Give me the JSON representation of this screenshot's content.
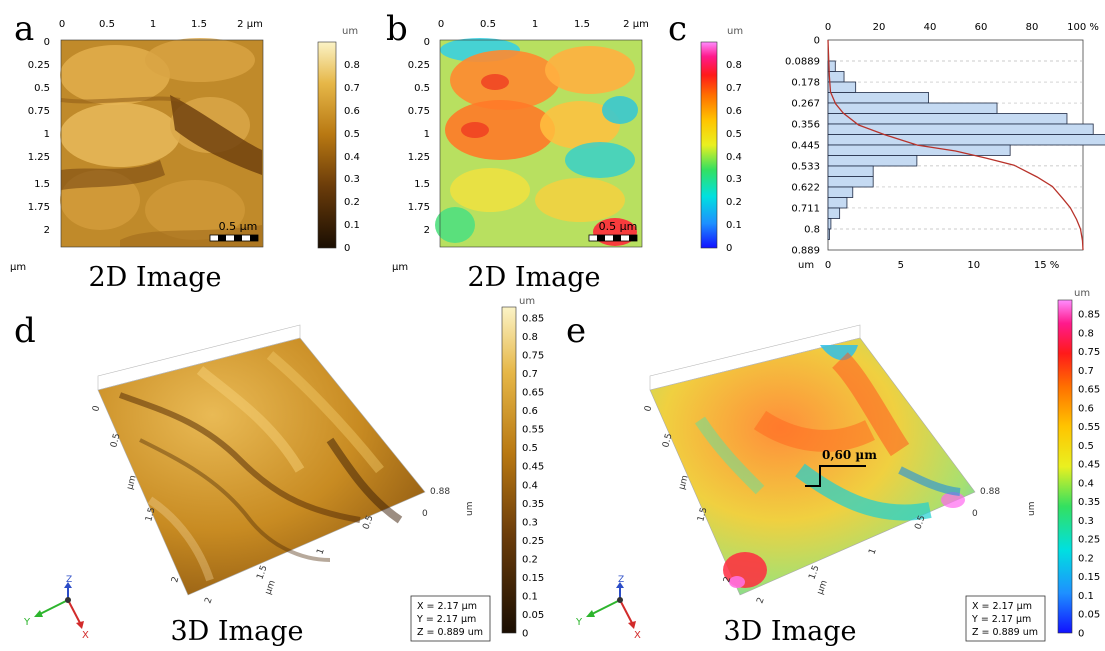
{
  "panels": {
    "a": {
      "letter": "a",
      "caption": "2D Image",
      "x_ticks": [
        "0",
        "0.5",
        "1",
        "1.5",
        "2 µm"
      ],
      "y_ticks": [
        "0",
        "0.25",
        "0.5",
        "0.75",
        "1",
        "1.25",
        "1.5",
        "1.75",
        "2"
      ],
      "corner_unit": "µm",
      "scalebar": "0.5 µm",
      "colorbar_unit": "um",
      "colorbar_ticks": [
        "0.8",
        "0.7",
        "0.6",
        "0.5",
        "0.4",
        "0.3",
        "0.2",
        "0.1",
        "0"
      ]
    },
    "b": {
      "letter": "b",
      "caption": "2D Image",
      "x_ticks": [
        "0",
        "0.5",
        "1",
        "1.5",
        "2 µm"
      ],
      "y_ticks": [
        "0",
        "0.25",
        "0.5",
        "0.75",
        "1",
        "1.25",
        "1.5",
        "1.75",
        "2"
      ],
      "corner_unit": "µm",
      "scalebar": "0.5 µm"
    },
    "c": {
      "letter": "c",
      "colorbar_unit": "um",
      "colorbar_ticks": [
        "0.8",
        "0.7",
        "0.6",
        "0.5",
        "0.4",
        "0.3",
        "0.2",
        "0.1",
        "0"
      ],
      "top_ticks": [
        "0",
        "20",
        "40",
        "60",
        "80",
        "100 %"
      ],
      "y_ticks": [
        "0",
        "0.0889",
        "0.178",
        "0.267",
        "0.356",
        "0.445",
        "0.533",
        "0.622",
        "0.711",
        "0.8",
        "0.889"
      ],
      "bottom_ticks": [
        "0",
        "5",
        "10",
        "15 %"
      ],
      "corner_unit": "um"
    },
    "d": {
      "letter": "d",
      "caption": "3D Image",
      "top_value": "0.88",
      "zero": "0",
      "z_unit": "um",
      "y_ticks": [
        "0",
        "0.5",
        "µm",
        "1.5",
        "2"
      ],
      "x_ticks": [
        "0.5",
        "1",
        "1.5",
        "2",
        "µm"
      ],
      "readout": [
        "X = 2.17 µm",
        "Y = 2.17 µm",
        "Z = 0.889 um"
      ],
      "axis_labels": [
        "X",
        "Y",
        "Z"
      ],
      "colorbar_unit": "um",
      "colorbar_ticks": [
        "0.85",
        "0.8",
        "0.75",
        "0.7",
        "0.65",
        "0.6",
        "0.55",
        "0.5",
        "0.45",
        "0.4",
        "0.35",
        "0.3",
        "0.25",
        "0.2",
        "0.15",
        "0.1",
        "0.05",
        "0"
      ]
    },
    "e": {
      "letter": "e",
      "caption": "3D Image",
      "annotation": "0,60 µm",
      "top_value": "0.88",
      "zero": "0",
      "z_unit": "um",
      "y_ticks": [
        "0",
        "0.5",
        "µm",
        "1.5",
        "2"
      ],
      "x_ticks": [
        "0.5",
        "1",
        "1.5",
        "2",
        "µm"
      ],
      "readout": [
        "X = 2.17 µm",
        "Y = 2.17 µm",
        "Z = 0.889 um"
      ],
      "axis_labels": [
        "X",
        "Y",
        "Z"
      ],
      "colorbar_unit": "um",
      "colorbar_ticks": [
        "0.85",
        "0.8",
        "0.75",
        "0.7",
        "0.65",
        "0.6",
        "0.55",
        "0.5",
        "0.45",
        "0.4",
        "0.35",
        "0.3",
        "0.25",
        "0.2",
        "0.15",
        "0.1",
        "0.05",
        "0"
      ]
    }
  },
  "chart_data": {
    "type": "bar",
    "orientation": "horizontal",
    "categories": [
      "0.0444",
      "0.0889",
      "0.133",
      "0.178",
      "0.222",
      "0.267",
      "0.311",
      "0.356",
      "0.4",
      "0.445",
      "0.489",
      "0.533",
      "0.578",
      "0.622",
      "0.667",
      "0.711",
      "0.756",
      "0.8",
      "0.844",
      "0.889"
    ],
    "values": [
      0,
      0,
      0.5,
      1.1,
      1.9,
      6.9,
      11.6,
      16.4,
      18.2,
      20.1,
      12.5,
      6.1,
      3.1,
      3.1,
      1.7,
      1.3,
      0.8,
      0.2,
      0.1,
      0
    ],
    "cumulative": {
      "y": [
        0.0,
        0.15,
        0.22,
        0.27,
        0.31,
        0.36,
        0.4,
        0.445,
        0.47,
        0.5,
        0.53,
        0.58,
        0.62,
        0.67,
        0.71,
        0.76,
        0.8,
        0.85,
        0.889
      ],
      "x": [
        0,
        0.5,
        1,
        3,
        6,
        12,
        22,
        35,
        50,
        62,
        73,
        82,
        88,
        92,
        95,
        97.5,
        99,
        99.8,
        100
      ]
    },
    "ylim": [
      0,
      0.889
    ],
    "xlim_bottom": [
      0,
      17.5
    ],
    "xlim_top": [
      0,
      100
    ],
    "bar_color": "#c5daf2",
    "curve_color": "#b8322a",
    "grid": true
  }
}
